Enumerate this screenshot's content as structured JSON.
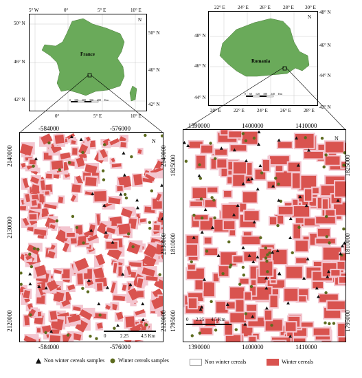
{
  "france": {
    "name": "France",
    "lon_labels_top": [
      "5° W",
      "0°",
      "5° E",
      "10° E"
    ],
    "lon_labels_bottom": [
      "0°",
      "5° E",
      "10° E"
    ],
    "lat_labels_left": [
      "50° N",
      "46° N",
      "42° N"
    ],
    "lat_labels_right": [
      "50° N",
      "46° N",
      "42° N"
    ],
    "scale_values": [
      "0",
      "100",
      "200",
      "300",
      "400"
    ],
    "scale_unit": "Km",
    "north": "N"
  },
  "romania": {
    "name": "Romania",
    "lon_labels_top": [
      "22° E",
      "24° E",
      "26° E",
      "28° E",
      "30° E"
    ],
    "lon_labels_bottom": [
      "20° E",
      "22° E",
      "24° E",
      "26° E",
      "28° E"
    ],
    "lat_labels_left": [
      "48° N",
      "46° N",
      "44° N"
    ],
    "lat_labels_right": [
      "48° N",
      "46° N",
      "44° N",
      "42° N"
    ],
    "scale_values": [
      "0",
      "60",
      "120",
      "180",
      "240"
    ],
    "scale_unit": "Km",
    "north": "N"
  },
  "detail_france": {
    "x_labels_top": [
      "-584000",
      "-576000"
    ],
    "x_labels_bottom": [
      "-584000",
      "-576000"
    ],
    "y_labels_left": [
      "2140000",
      "2130000",
      "2120000"
    ],
    "y_labels_right": [
      "2140000",
      "2130000",
      "2120000"
    ],
    "scale_values": [
      "0",
      "2.25",
      "4.5 Km"
    ],
    "north": "N"
  },
  "detail_romania": {
    "x_labels_top": [
      "1390000",
      "1400000",
      "1410000"
    ],
    "x_labels_bottom": [
      "1390000",
      "1400000",
      "1410000"
    ],
    "y_labels_left": [
      "1825000",
      "1810000",
      "1795000"
    ],
    "y_labels_right": [
      "1825000",
      "1810000",
      "1795000"
    ],
    "scale_values": [
      "0",
      "2.25",
      "4.5 Km"
    ],
    "north": "N"
  },
  "legend": {
    "non_winter_samples": "Non winter cereals samples",
    "winter_samples": "Winter cereals samples",
    "non_winter_cereals": "Non winter cereals",
    "winter_cereals": "Winter cereals"
  },
  "colors": {
    "land": "#6aaa5a",
    "winter_cereals": "#d9534f",
    "winter_halo": "#f3c6d0",
    "sample_green": "#5c6b1e",
    "sample_black": "#111111"
  }
}
